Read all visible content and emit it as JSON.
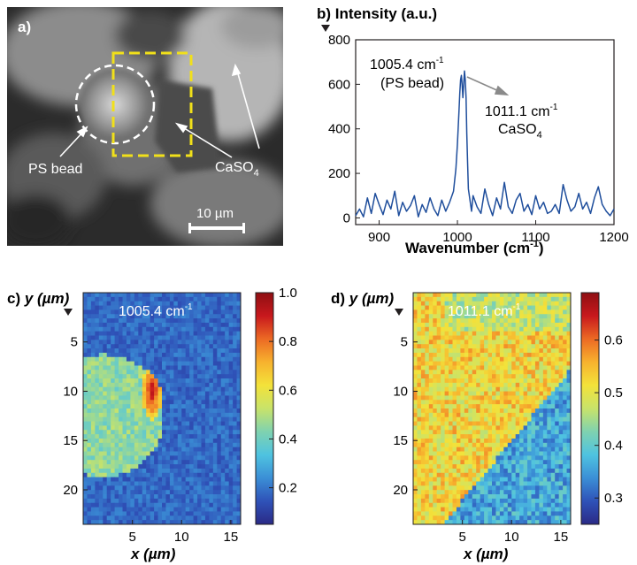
{
  "panels": {
    "a": {
      "letter": "a)",
      "ps_label": "PS bead",
      "caso4_label": "CaSO",
      "caso4_sub": "4",
      "scale_label": "10 µm"
    },
    "b": {
      "letter": "b)",
      "ylabel": "Intensity (a.u.)",
      "xlabel": "Wavenumber (cm",
      "xlabel_sup": "-1",
      "xlabel_close": ")",
      "peak1": {
        "value": "1005.4 cm",
        "sup": "-1",
        "line2": "(PS bead)"
      },
      "peak2": {
        "value": "1011.1 cm",
        "sup": "-1",
        "line2": "CaSO",
        "sub": "4"
      }
    },
    "c": {
      "letter": "c)",
      "ylabel": "y (µm)",
      "xlabel": "x (µm)",
      "map_label": "1005.4 cm",
      "map_sup": "-1"
    },
    "d": {
      "letter": "d)",
      "ylabel": "y (µm)",
      "xlabel": "x (µm)",
      "map_label": "1011.1 cm",
      "map_sup": "-1"
    }
  },
  "chart_data": [
    {
      "type": "line",
      "panel": "b",
      "ylabel": "Intensity (a.u.)",
      "xlabel": "Wavenumber (cm-1)",
      "xlim": [
        870,
        1200
      ],
      "ylim": [
        -30,
        800
      ],
      "xticks": [
        900,
        1000,
        1100,
        1200
      ],
      "yticks": [
        0,
        200,
        400,
        600,
        800
      ],
      "color": "#1f4e9c",
      "series": [
        {
          "x": [
            870,
            875,
            880,
            885,
            890,
            895,
            900,
            905,
            910,
            915,
            920,
            925,
            930,
            935,
            940,
            945,
            950,
            955,
            960,
            965,
            970,
            975,
            980,
            985,
            990,
            995,
            998,
            1000,
            1002,
            1003,
            1004,
            1005,
            1006,
            1007,
            1008,
            1009,
            1010,
            1011,
            1012,
            1013,
            1014,
            1016,
            1018,
            1020,
            1025,
            1030,
            1035,
            1040,
            1045,
            1050,
            1055,
            1060,
            1065,
            1070,
            1075,
            1080,
            1085,
            1090,
            1095,
            1100,
            1105,
            1110,
            1115,
            1120,
            1125,
            1130,
            1135,
            1140,
            1145,
            1150,
            1155,
            1160,
            1165,
            1170,
            1175,
            1180,
            1185,
            1190,
            1195,
            1200
          ],
          "y": [
            10,
            40,
            5,
            90,
            20,
            110,
            60,
            15,
            80,
            40,
            120,
            10,
            70,
            30,
            55,
            100,
            5,
            60,
            25,
            90,
            40,
            10,
            80,
            30,
            70,
            120,
            220,
            330,
            480,
            560,
            620,
            640,
            600,
            540,
            600,
            660,
            620,
            540,
            380,
            250,
            130,
            80,
            30,
            100,
            50,
            20,
            130,
            60,
            10,
            90,
            40,
            160,
            50,
            20,
            80,
            110,
            30,
            60,
            15,
            100,
            40,
            70,
            20,
            30,
            60,
            20,
            150,
            80,
            30,
            50,
            110,
            40,
            70,
            20,
            90,
            140,
            60,
            30,
            10,
            40
          ]
        }
      ],
      "annotations": [
        "1005.4 cm-1 (PS bead)",
        "1011.1 cm-1 CaSO4"
      ]
    },
    {
      "type": "heatmap",
      "panel": "c",
      "title": "1005.4 cm-1",
      "xlabel": "x (µm)",
      "ylabel": "y (µm)",
      "xlim": [
        0,
        16
      ],
      "ylim": [
        0,
        23.5
      ],
      "xticks": [
        5,
        10,
        15
      ],
      "yticks": [
        5,
        10,
        15,
        20
      ],
      "colorbar": {
        "min": 0.05,
        "max": 1.0,
        "ticks": [
          0.2,
          0.4,
          0.6,
          0.8,
          1.0
        ]
      },
      "features": {
        "bead_center": [
          2,
          12.5
        ],
        "bead_radius": 6.2,
        "bead_level": 0.45,
        "hotspot_center": [
          7,
          10
        ],
        "hotspot_level": 0.95,
        "background_level": 0.18
      }
    },
    {
      "type": "heatmap",
      "panel": "d",
      "title": "1011.1 cm-1",
      "xlabel": "x (µm)",
      "ylabel": "y (µm)",
      "xlim": [
        0,
        16
      ],
      "ylim": [
        0,
        23.5
      ],
      "xticks": [
        5,
        10,
        15
      ],
      "yticks": [
        5,
        10,
        15,
        20
      ],
      "colorbar": {
        "min": 0.25,
        "max": 0.69,
        "ticks": [
          0.3,
          0.4,
          0.5,
          0.6
        ]
      },
      "features": {
        "boundary_line": [
          [
            3,
            23.5
          ],
          [
            15,
            9
          ]
        ],
        "low_level": 0.36,
        "high_level": 0.52
      }
    }
  ],
  "colormap": [
    "#2a2a86",
    "#2f52b8",
    "#3b8fd6",
    "#4fc3e0",
    "#7fd2b0",
    "#c8e36a",
    "#f3e23a",
    "#f7b22e",
    "#ec6a24",
    "#c8181d",
    "#8e0f12"
  ]
}
